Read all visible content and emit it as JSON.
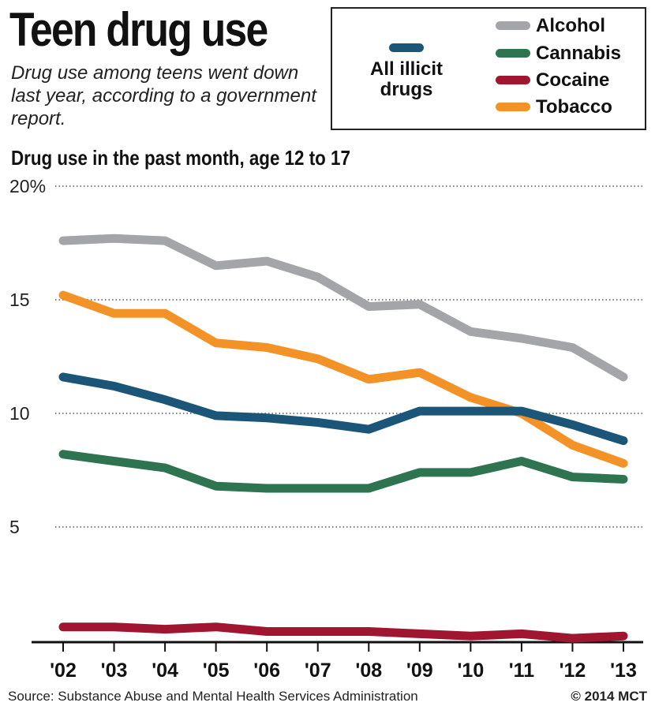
{
  "header": {
    "title": "Teen drug use",
    "subtitle": "Drug use among teens went down last year, according to a government report."
  },
  "legend": {
    "items": [
      {
        "key": "all_illicit",
        "label": "All illicit drugs",
        "color": "#1b5678"
      },
      {
        "key": "alcohol",
        "label": "Alcohol",
        "color": "#a3a5a8"
      },
      {
        "key": "cannabis",
        "label": "Cannabis",
        "color": "#2e7450"
      },
      {
        "key": "cocaine",
        "label": "Cocaine",
        "color": "#a01530"
      },
      {
        "key": "tobacco",
        "label": "Tobacco",
        "color": "#f39226"
      }
    ]
  },
  "footer": {
    "source": "Source: Substance Abuse and Mental Health Services Administration",
    "credit": "© 2014 MCT"
  },
  "chart_data": {
    "type": "line",
    "title": "Drug use in the past month, age 12 to 17",
    "xlabel": "",
    "ylabel": "",
    "ylim": [
      0,
      20
    ],
    "yticks": [
      5,
      10,
      15,
      20
    ],
    "ytick_labels": [
      "5",
      "10",
      "15",
      "20%"
    ],
    "grid": "dotted horizontal",
    "legend_position": "top-right",
    "categories": [
      "'02",
      "'03",
      "'04",
      "'05",
      "'06",
      "'07",
      "'08",
      "'09",
      "'10",
      "'11",
      "'12",
      "'13"
    ],
    "series": [
      {
        "key": "alcohol",
        "name": "Alcohol",
        "color": "#a3a5a8",
        "values": [
          17.6,
          17.7,
          17.6,
          16.5,
          16.7,
          16.0,
          14.7,
          14.8,
          13.6,
          13.3,
          12.9,
          11.6
        ]
      },
      {
        "key": "tobacco",
        "name": "Tobacco",
        "color": "#f39226",
        "values": [
          15.2,
          14.4,
          14.4,
          13.1,
          12.9,
          12.4,
          11.5,
          11.8,
          10.7,
          10.0,
          8.6,
          7.8
        ]
      },
      {
        "key": "all_illicit",
        "name": "All illicit drugs",
        "color": "#1b5678",
        "values": [
          11.6,
          11.2,
          10.6,
          9.9,
          9.8,
          9.6,
          9.3,
          10.1,
          10.1,
          10.1,
          9.5,
          8.8
        ]
      },
      {
        "key": "cannabis",
        "name": "Cannabis",
        "color": "#2e7450",
        "values": [
          8.2,
          7.9,
          7.6,
          6.8,
          6.7,
          6.7,
          6.7,
          7.4,
          7.4,
          7.9,
          7.2,
          7.1
        ]
      },
      {
        "key": "cocaine",
        "name": "Cocaine",
        "color": "#a01530",
        "values": [
          0.6,
          0.6,
          0.5,
          0.6,
          0.4,
          0.4,
          0.4,
          0.3,
          0.2,
          0.3,
          0.1,
          0.2
        ]
      }
    ]
  }
}
